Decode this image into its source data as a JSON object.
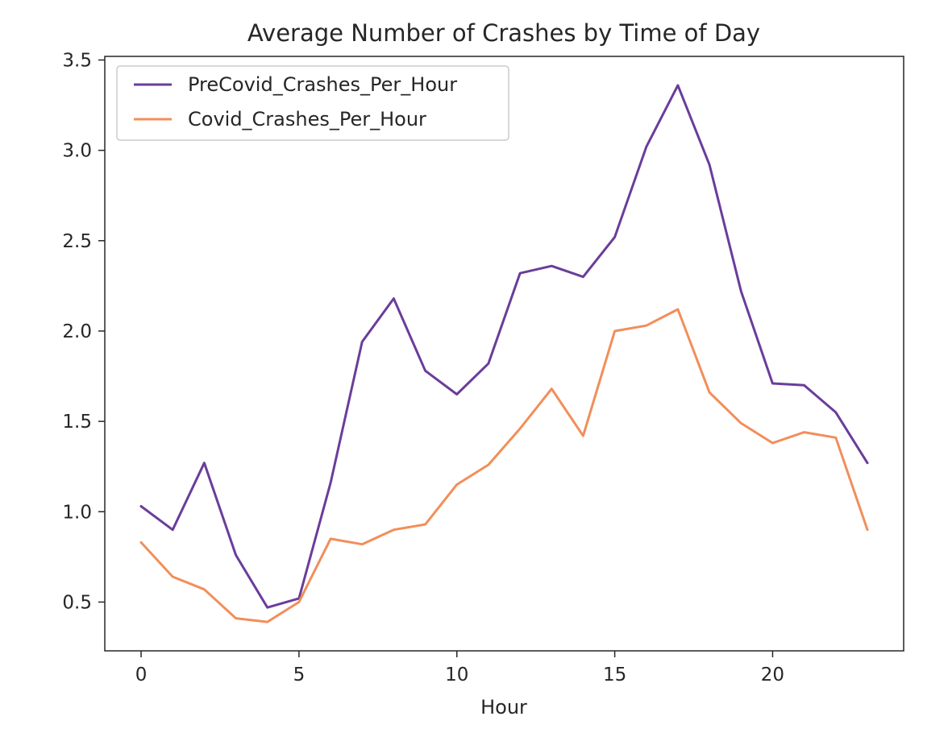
{
  "chart_data": {
    "type": "line",
    "title": "Average Number of Crashes by Time of Day",
    "xlabel": "Hour",
    "ylabel": "",
    "x": [
      0,
      1,
      2,
      3,
      4,
      5,
      6,
      7,
      8,
      9,
      10,
      11,
      12,
      13,
      14,
      15,
      16,
      17,
      18,
      19,
      20,
      21,
      22,
      23
    ],
    "xlim": [
      -1.15,
      24.15
    ],
    "ylim": [
      0.23,
      3.52
    ],
    "xticks": [
      0,
      5,
      10,
      15,
      20
    ],
    "xtick_labels": [
      "0",
      "5",
      "10",
      "15",
      "20"
    ],
    "yticks": [
      0.5,
      1.0,
      1.5,
      2.0,
      2.5,
      3.0,
      3.5
    ],
    "ytick_labels": [
      "0.5",
      "1.0",
      "1.5",
      "2.0",
      "2.5",
      "3.0",
      "3.5"
    ],
    "grid": false,
    "legend_position": "upper-left",
    "series": [
      {
        "name": "PreCovid_Crashes_Per_Hour",
        "color": "#6a3d9a",
        "values": [
          1.03,
          0.9,
          1.27,
          0.76,
          0.47,
          0.52,
          1.16,
          1.94,
          2.18,
          1.78,
          1.65,
          1.82,
          2.32,
          2.36,
          2.3,
          2.52,
          3.02,
          3.36,
          2.92,
          2.22,
          1.71,
          1.7,
          1.55,
          1.27
        ]
      },
      {
        "name": "Covid_Crashes_Per_Hour",
        "color": "#f28e5a",
        "values": [
          0.83,
          0.64,
          0.57,
          0.41,
          0.39,
          0.5,
          0.85,
          0.82,
          0.9,
          0.93,
          1.15,
          1.26,
          1.46,
          1.68,
          1.42,
          2.0,
          2.03,
          2.12,
          1.66,
          1.49,
          1.38,
          1.44,
          1.41,
          0.9
        ]
      }
    ]
  }
}
